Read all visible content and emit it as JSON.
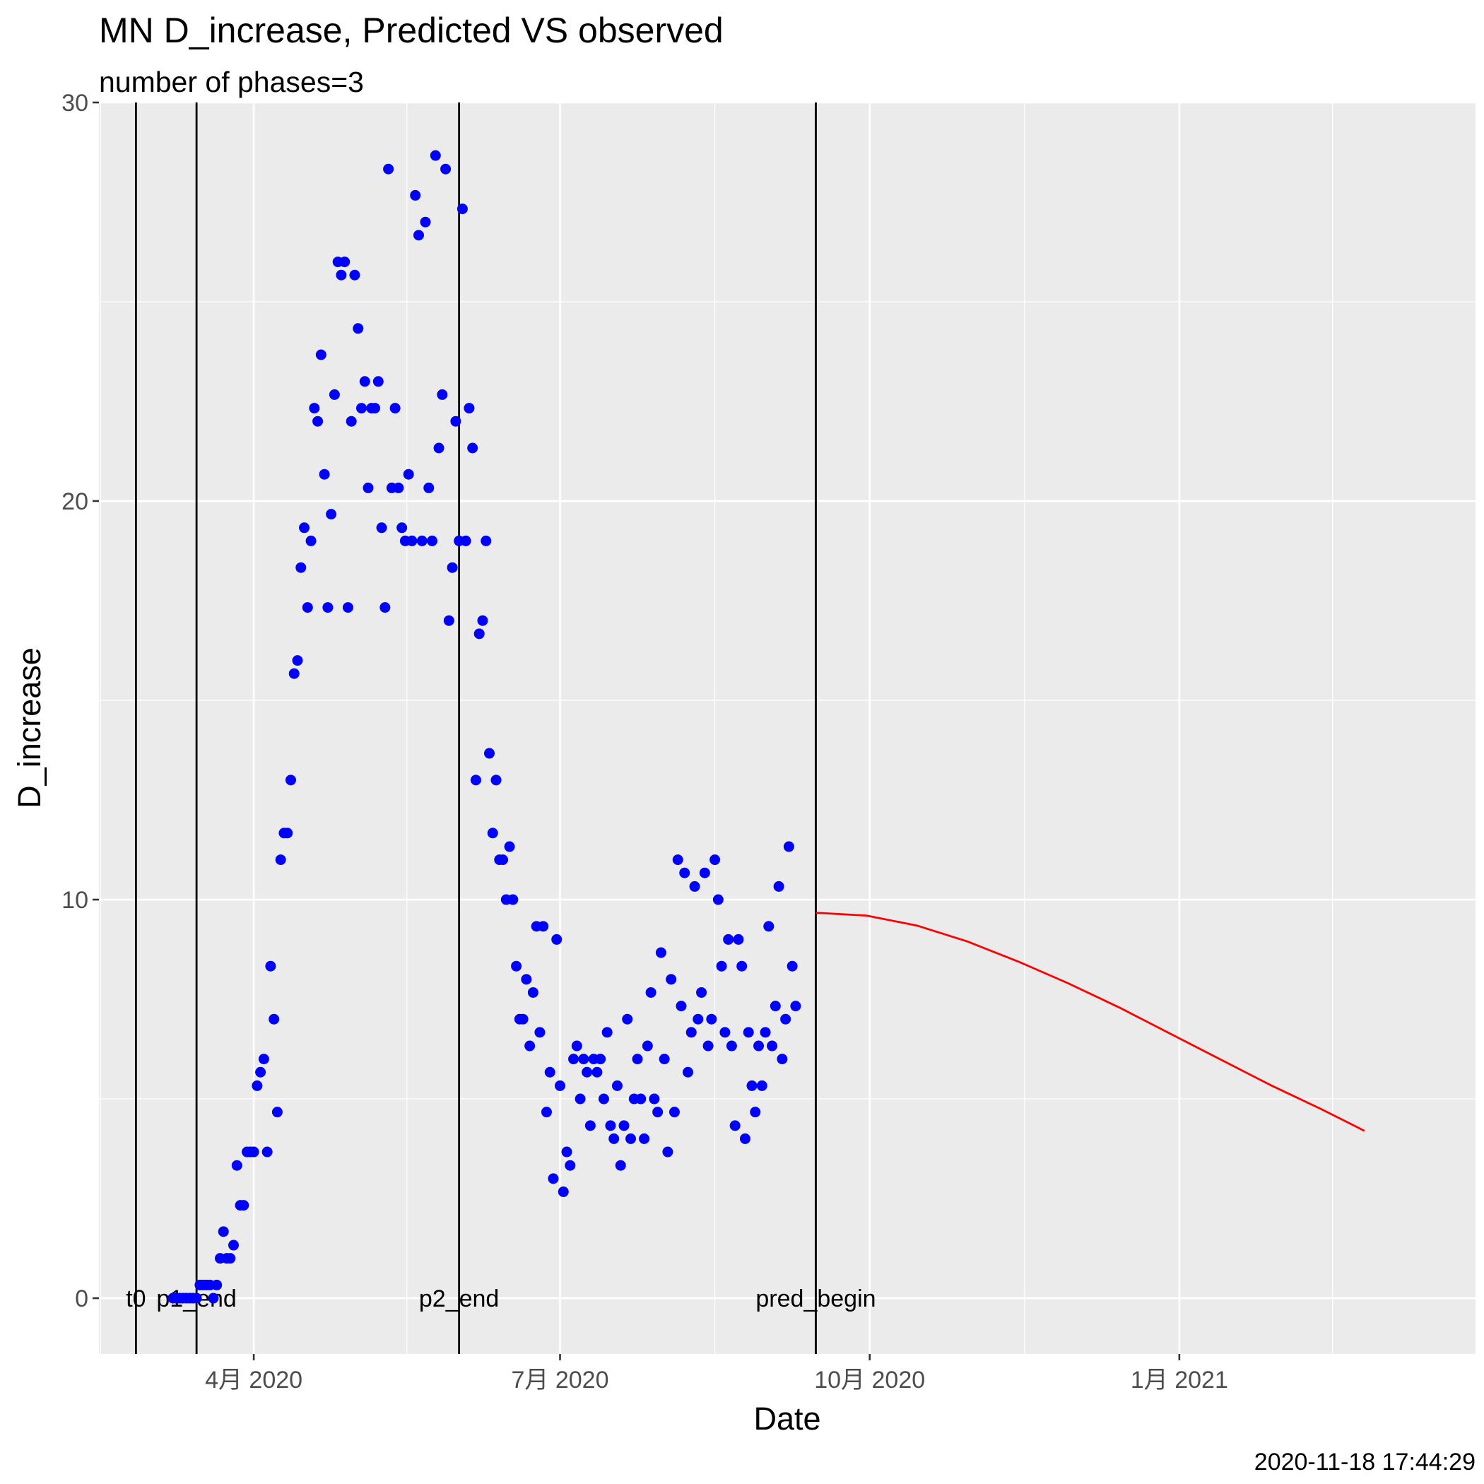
{
  "chart_data": {
    "type": "scatter",
    "title": "MN D_increase, Predicted VS observed",
    "subtitle": "number of phases=3",
    "xlabel": "Date",
    "ylabel": "D_increase",
    "caption": "2020-11-18 17:44:29",
    "x_range": [
      "2020-02-15",
      "2021-03-30"
    ],
    "ylim": [
      -1.4,
      30
    ],
    "y_ticks": [
      0,
      10,
      20,
      30
    ],
    "x_ticks": [
      {
        "date": "2020-04-01",
        "label": "4月 2020"
      },
      {
        "date": "2020-07-01",
        "label": "7月 2020"
      },
      {
        "date": "2020-10-01",
        "label": "10月 2020"
      },
      {
        "date": "2021-01-01",
        "label": "1月 2021"
      }
    ],
    "grid": true,
    "vlines": [
      {
        "date": "2020-02-26",
        "label": "t0"
      },
      {
        "date": "2020-03-15",
        "label": "p1_end"
      },
      {
        "date": "2020-06-01",
        "label": "p2_end"
      },
      {
        "date": "2020-09-15",
        "label": "pred_begin"
      }
    ],
    "series": [
      {
        "type": "scatter",
        "color": "#0000ff",
        "start_date": "2020-03-08",
        "values": [
          0,
          0,
          0,
          0,
          0,
          0,
          0,
          0,
          0.33,
          0.33,
          0.33,
          0.33,
          0,
          0.33,
          1,
          1.67,
          1,
          1,
          1.33,
          3.33,
          2.33,
          2.33,
          3.67,
          3.67,
          3.67,
          5.33,
          5.67,
          6,
          3.67,
          8.33,
          7,
          4.67,
          11,
          11.67,
          11.67,
          13,
          15.67,
          16,
          18.33,
          19.33,
          17.33,
          19,
          22.33,
          22,
          23.67,
          20.67,
          17.33,
          19.67,
          22.67,
          26,
          25.67,
          26,
          17.33,
          22,
          25.67,
          24.33,
          22.33,
          23,
          20.33,
          22.33,
          22.33,
          23,
          19.33,
          17.33,
          28.33,
          20.33,
          22.33,
          20.33,
          19.33,
          19,
          20.67,
          19,
          27.67,
          26.67,
          19,
          27,
          20.33,
          19,
          28.67,
          21.33,
          22.67,
          28.33,
          17,
          18.33,
          22,
          19,
          27.33,
          19,
          22.33,
          21.33,
          13,
          16.67,
          17,
          19,
          13.67,
          11.67,
          13,
          11,
          11,
          10,
          11.33,
          10,
          8.33,
          7,
          7,
          8,
          6.33,
          7.67,
          9.33,
          6.67,
          9.33,
          4.67,
          5.67,
          3,
          9,
          5.33,
          2.67,
          3.67,
          3.33,
          6,
          6.33,
          5,
          6,
          5.67,
          4.33,
          6,
          5.67,
          6,
          5,
          6.67,
          4.33,
          4,
          5.33,
          3.33,
          4.33,
          7,
          4,
          5,
          6,
          5,
          4,
          6.33,
          7.67,
          5,
          4.67,
          8.67,
          6,
          3.67,
          8,
          4.67,
          11,
          7.33,
          10.67,
          5.67,
          6.67,
          10.33,
          7,
          7.67,
          10.67,
          6.33,
          7,
          11,
          10,
          8.33,
          6.67,
          9,
          6.33,
          4.33,
          9,
          8.33,
          4,
          6.67,
          5.33,
          4.67,
          6.33,
          5.33,
          6.67,
          9.33,
          6.33,
          7.33,
          10.33,
          6,
          7,
          11.33,
          8.33,
          7.33
        ]
      },
      {
        "type": "line",
        "color": "#ff0000",
        "start_date": "2020-09-15",
        "points": [
          [
            0,
            9.67
          ],
          [
            15,
            9.6
          ],
          [
            30,
            9.35
          ],
          [
            45,
            8.95
          ],
          [
            60,
            8.45
          ],
          [
            75,
            7.9
          ],
          [
            90,
            7.3
          ],
          [
            105,
            6.65
          ],
          [
            120,
            6.0
          ],
          [
            135,
            5.35
          ],
          [
            150,
            4.75
          ],
          [
            163,
            4.2
          ]
        ]
      }
    ]
  }
}
